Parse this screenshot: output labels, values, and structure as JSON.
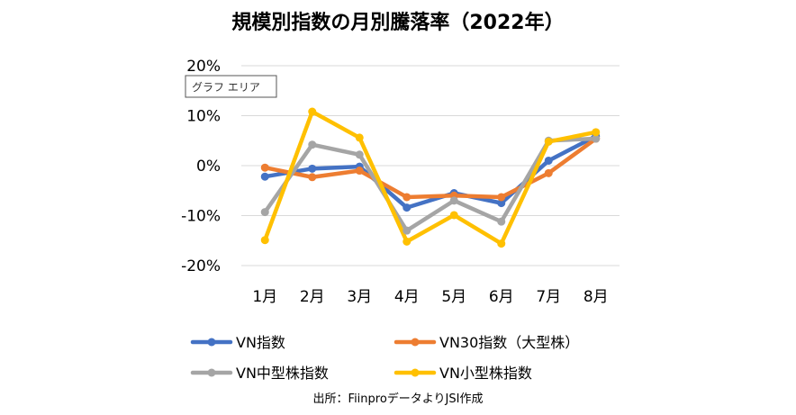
{
  "chart_data": {
    "type": "line",
    "title": "規模別指数の月別騰落率（2022年）",
    "categories": [
      "1月",
      "2月",
      "3月",
      "4月",
      "5月",
      "6月",
      "7月",
      "8月"
    ],
    "yticks": [
      "20%",
      "10%",
      "0%",
      "-10%",
      "-20%"
    ],
    "ylim": [
      -20,
      20
    ],
    "unit": "%",
    "grid": true,
    "legend_position": "bottom",
    "series": [
      {
        "name": "VN指数",
        "color": "#4472C4",
        "values": [
          -2.2,
          -0.6,
          -0.2,
          -8.4,
          -5.5,
          -7.5,
          1.0,
          5.9
        ]
      },
      {
        "name": "VN30指数（大型株）",
        "color": "#ED7D31",
        "values": [
          -0.4,
          -2.3,
          -1.0,
          -6.3,
          -6.0,
          -6.3,
          -1.5,
          5.4
        ]
      },
      {
        "name": "VN中型株指数",
        "color": "#A5A5A5",
        "values": [
          -9.3,
          4.2,
          2.2,
          -13.0,
          -7.0,
          -11.2,
          5.0,
          5.4
        ]
      },
      {
        "name": "VN小型株指数",
        "color": "#FFC000",
        "values": [
          -14.9,
          10.8,
          5.6,
          -15.2,
          -9.9,
          -15.6,
          4.8,
          6.7
        ]
      }
    ],
    "tooltip": "グラフ エリア",
    "source_note": "出所：FiinproデータよりJSI作成"
  }
}
